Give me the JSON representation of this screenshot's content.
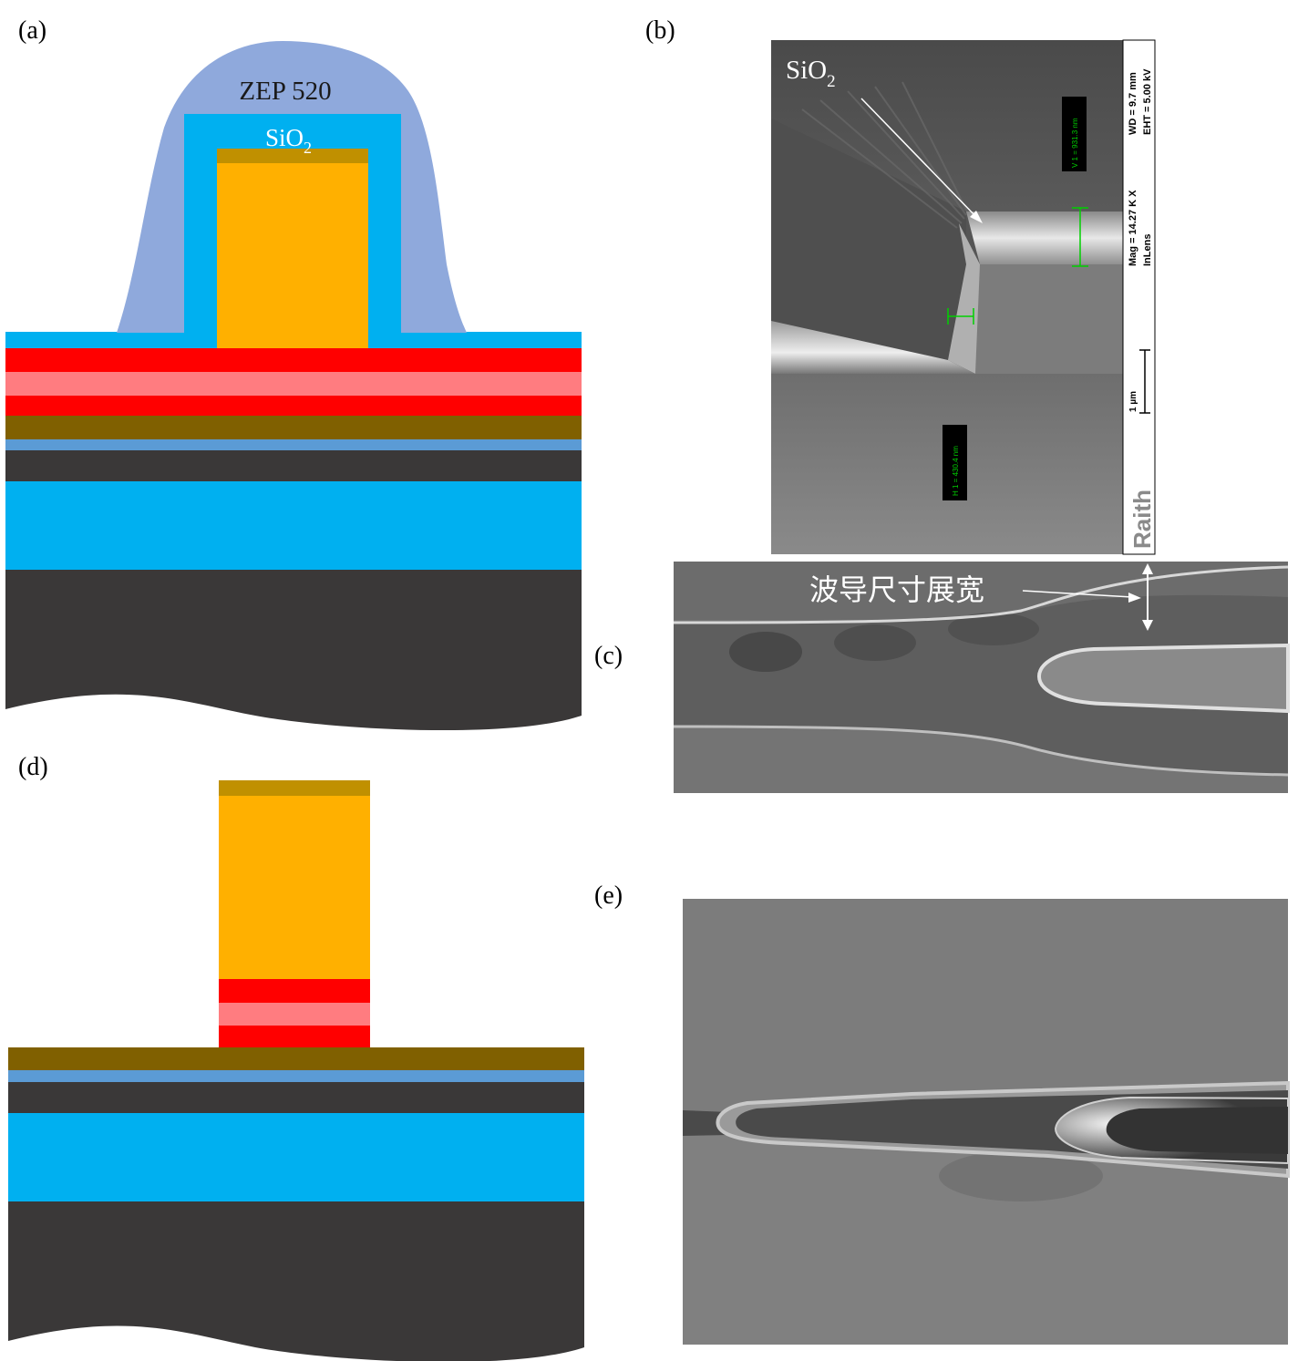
{
  "panels": {
    "a": {
      "label": "(a)",
      "zep": "ZEP 520",
      "sio2_base": "SiO",
      "sio2_sub": "2"
    },
    "b": {
      "label": "(b)",
      "sio2_base": "SiO",
      "sio2_sub": "2",
      "v1": "V 1 = 931.3 nm",
      "h1": "H 1 = 430.4 nm",
      "wd": "WD = 9.7 mm",
      "eht": "EHT = 5.00 kV",
      "mag": "Mag = 14.27 K X",
      "detector": "InLens",
      "scale": "1 µm",
      "brand": "Raith"
    },
    "c": {
      "label": "(c)",
      "annotation": "波导尺寸展宽"
    },
    "d": {
      "label": "(d)"
    },
    "e": {
      "label": "(e)"
    }
  },
  "colors": {
    "zep": "#8fa9dc",
    "sio2": "#00b0f0",
    "gold": "#ffb000",
    "gold_cap": "#c09000",
    "red": "#ff0000",
    "pink": "#ff7c80",
    "brown": "#806000",
    "blue_thin": "#5b9bd5",
    "dark": "#3a3838"
  }
}
